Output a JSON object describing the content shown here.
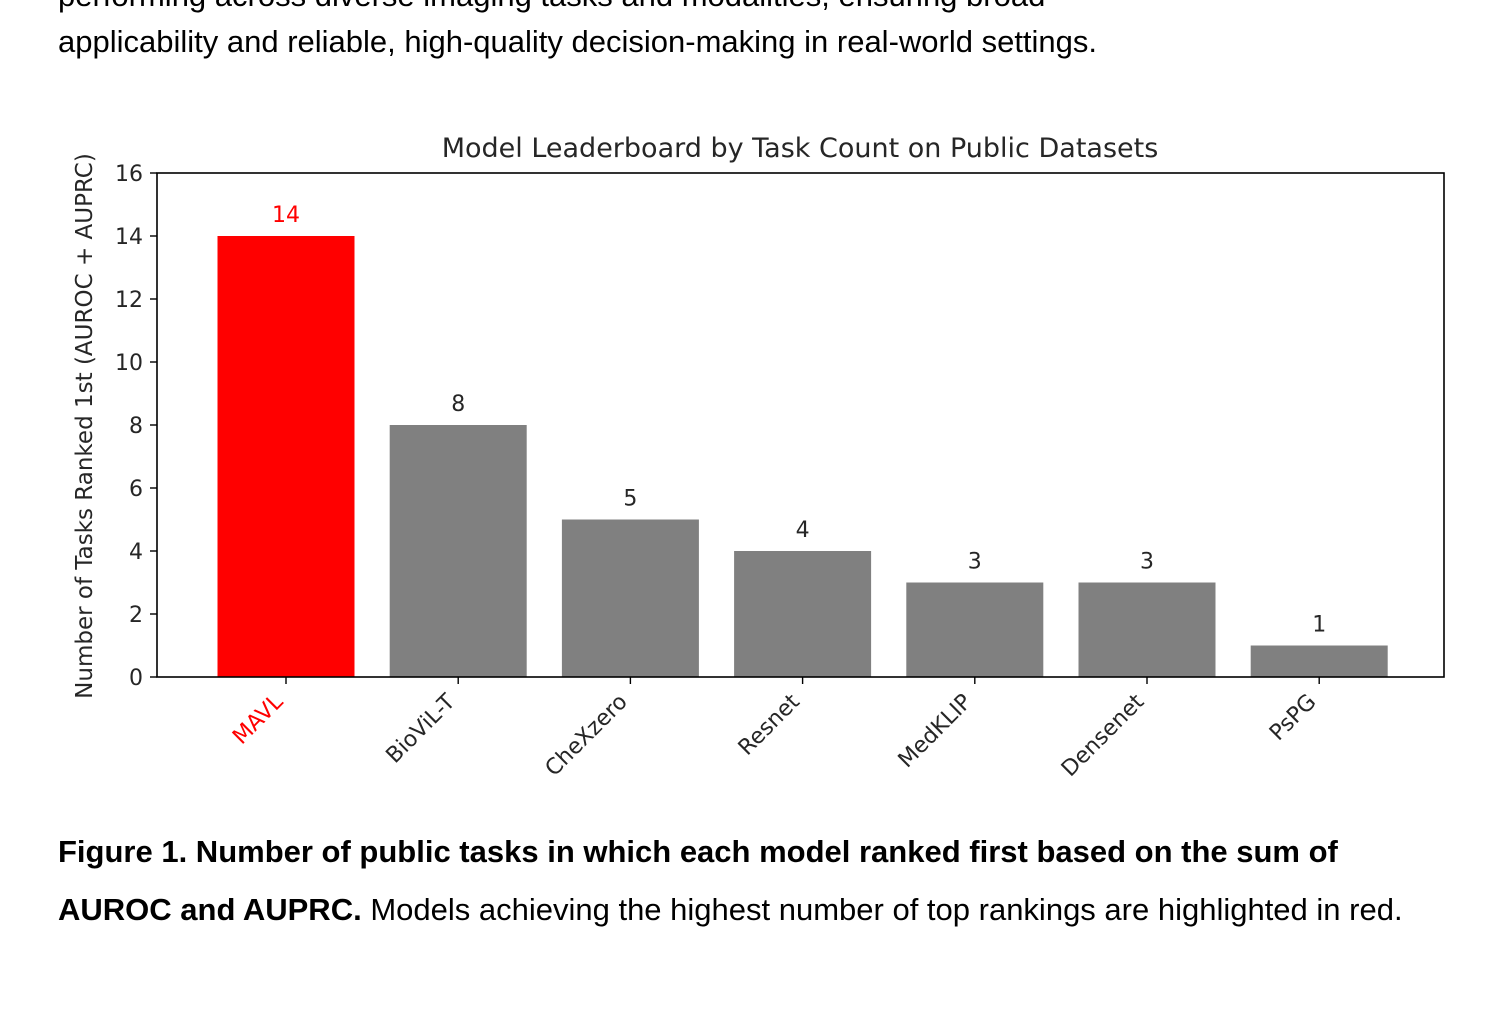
{
  "document": {
    "cut_line": "performing across diverse imaging tasks and modalities, ensuring broad",
    "intro_line": "applicability and reliable, high-quality decision-making in real-world settings.",
    "caption": {
      "bold": "Figure 1. Number of public tasks in which each model ranked first based on the sum of AUROC and AUPRC.",
      "rest": " Models achieving the highest number of top rankings are highlighted in red."
    }
  },
  "chart_data": {
    "type": "bar",
    "title": "Model Leaderboard by Task Count on Public Datasets",
    "xlabel": "",
    "ylabel": "Number of Tasks Ranked 1st (AUROC + AUPRC)",
    "categories": [
      "MAVL",
      "BioViL-T",
      "CheXzero",
      "Resnet",
      "MedKLIP",
      "Densenet",
      "PsPG"
    ],
    "values": [
      14,
      8,
      5,
      4,
      3,
      3,
      1
    ],
    "highlight": [
      true,
      false,
      false,
      false,
      false,
      false,
      false
    ],
    "ylim": [
      0,
      16
    ],
    "yticks": [
      0,
      2,
      4,
      6,
      8,
      10,
      12,
      14,
      16
    ],
    "grid": false,
    "colors": {
      "highlight": "#ff0000",
      "default": "#808080"
    }
  }
}
